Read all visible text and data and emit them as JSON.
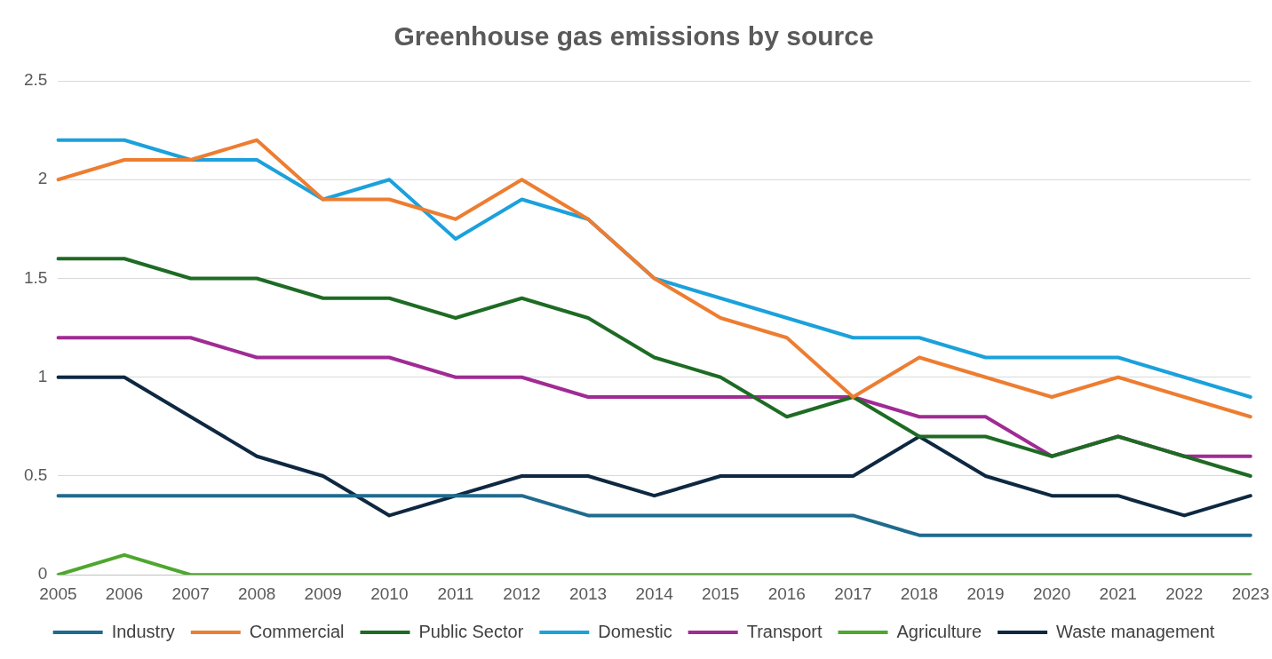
{
  "chart_data": {
    "type": "line",
    "title": "Greenhouse gas emissions by source",
    "categories": [
      "2005",
      "2006",
      "2007",
      "2008",
      "2009",
      "2010",
      "2011",
      "2012",
      "2013",
      "2014",
      "2015",
      "2016",
      "2017",
      "2018",
      "2019",
      "2020",
      "2021",
      "2022",
      "2023"
    ],
    "series": [
      {
        "name": "Industry",
        "color": "#1f6b8e",
        "values": [
          0.4,
          0.4,
          0.4,
          0.4,
          0.4,
          0.4,
          0.4,
          0.4,
          0.3,
          0.3,
          0.3,
          0.3,
          0.3,
          0.2,
          0.2,
          0.2,
          0.2,
          0.2,
          0.2
        ]
      },
      {
        "name": "Commercial",
        "color": "#ed7d31",
        "values": [
          2.0,
          2.1,
          2.1,
          2.2,
          1.9,
          1.9,
          1.8,
          2.0,
          1.8,
          1.5,
          1.3,
          1.2,
          0.9,
          1.1,
          1.0,
          0.9,
          1.0,
          0.9,
          0.8
        ]
      },
      {
        "name": "Public Sector",
        "color": "#1e6b24",
        "values": [
          1.6,
          1.6,
          1.5,
          1.5,
          1.4,
          1.4,
          1.3,
          1.4,
          1.3,
          1.1,
          1.0,
          0.8,
          0.9,
          0.7,
          0.7,
          0.6,
          0.7,
          0.6,
          0.5
        ]
      },
      {
        "name": "Domestic",
        "color": "#1ba1dc",
        "values": [
          2.2,
          2.2,
          2.1,
          2.1,
          1.9,
          2.0,
          1.7,
          1.9,
          1.8,
          1.5,
          1.4,
          1.3,
          1.2,
          1.2,
          1.1,
          1.1,
          1.1,
          1.0,
          0.9
        ]
      },
      {
        "name": "Transport",
        "color": "#a02b93",
        "values": [
          1.2,
          1.2,
          1.2,
          1.1,
          1.1,
          1.1,
          1.0,
          1.0,
          0.9,
          0.9,
          0.9,
          0.9,
          0.9,
          0.8,
          0.8,
          0.6,
          0.7,
          0.6,
          0.6
        ]
      },
      {
        "name": "Agriculture",
        "color": "#4ea72e",
        "values": [
          0,
          0.1,
          0,
          0,
          0,
          0,
          0,
          0,
          0,
          0,
          0,
          0,
          0,
          0,
          0,
          0,
          0,
          0,
          0
        ]
      },
      {
        "name": "Waste management",
        "color": "#0e2841",
        "values": [
          1.0,
          1.0,
          0.8,
          0.6,
          0.5,
          0.3,
          0.4,
          0.5,
          0.5,
          0.4,
          0.5,
          0.5,
          0.5,
          0.7,
          0.5,
          0.4,
          0.4,
          0.3,
          0.4
        ]
      }
    ],
    "ylim": [
      0,
      2.5
    ],
    "yticks": [
      0,
      0.5,
      1,
      1.5,
      2,
      2.5
    ],
    "grid": "y",
    "legend": "bottom",
    "marker": "none",
    "line_style": "solid"
  }
}
